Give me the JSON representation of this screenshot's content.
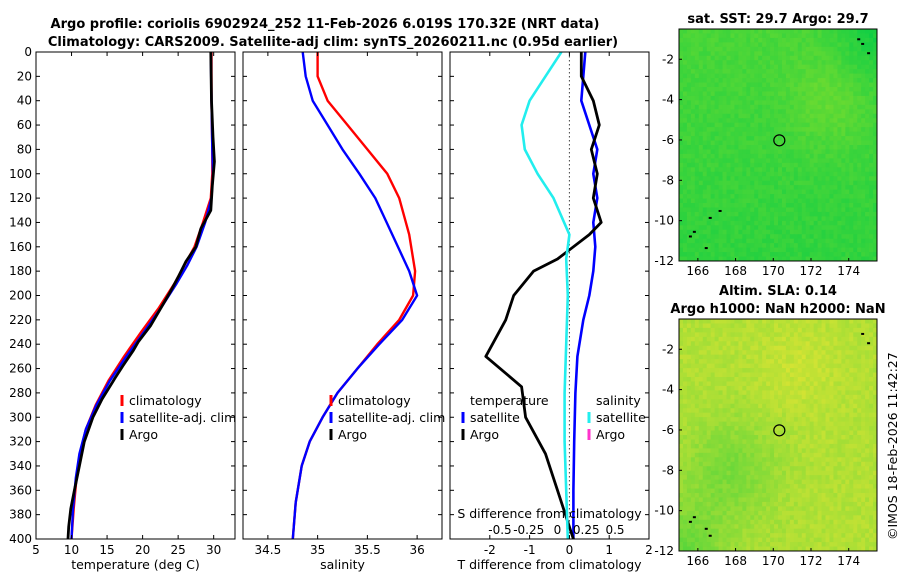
{
  "figure": {
    "title_line1": "Argo profile: coriolis 6902924_252 11-Feb-2026 6.019S 170.32E (NRT data)",
    "title_line2": "Climatology: CARS2009. Satellite-adj clim: synTS_20260211.nc (0.95d earlier)",
    "credit": "©IMOS 18-Feb-2026 11:42:27"
  },
  "colors": {
    "climatology": "#ff0000",
    "satellite": "#0000ff",
    "argo": "#000000",
    "sat_salinity": "#22eeee",
    "s_satellite_legend": "#ff33cc",
    "zero_line": "#444444",
    "map_ring": "#000000"
  },
  "chart_data": [
    {
      "id": "temperature",
      "type": "line",
      "xlabel": "temperature (deg C)",
      "ylabel": "",
      "xlim": [
        5,
        33
      ],
      "ylim": [
        400,
        0
      ],
      "xticks": [
        5,
        10,
        15,
        20,
        25,
        30
      ],
      "yticks": [
        0,
        20,
        40,
        60,
        80,
        100,
        120,
        140,
        160,
        180,
        200,
        220,
        240,
        260,
        280,
        300,
        320,
        340,
        360,
        380,
        400
      ],
      "legend": [
        "climatology",
        "satellite-adj. clim",
        "Argo"
      ],
      "series": [
        {
          "name": "climatology",
          "x": [
            29.7,
            29.7,
            29.8,
            29.8,
            29.6,
            28.5,
            27.3,
            25.9,
            24.5,
            22.3,
            19.8,
            17.4,
            15.2,
            13.4,
            12.0,
            11.2,
            10.7,
            10.3,
            10.0
          ],
          "y": [
            0,
            40,
            80,
            100,
            120,
            140,
            160,
            175,
            190,
            210,
            230,
            250,
            270,
            290,
            310,
            330,
            350,
            375,
            400
          ]
        },
        {
          "name": "satellite-adj. clim",
          "x": [
            29.6,
            29.7,
            29.8,
            29.9,
            29.7,
            28.8,
            27.6,
            26.3,
            24.8,
            22.6,
            20.2,
            17.7,
            15.4,
            13.5,
            12.0,
            11.1,
            10.6,
            10.2,
            10.0
          ],
          "y": [
            0,
            40,
            80,
            100,
            120,
            140,
            160,
            175,
            190,
            210,
            230,
            250,
            270,
            290,
            310,
            330,
            350,
            375,
            400
          ]
        },
        {
          "name": "Argo",
          "x": [
            29.6,
            29.7,
            29.9,
            30.1,
            29.8,
            29.6,
            28.2,
            27.5,
            26.1,
            25.0,
            23.8,
            22.4,
            21.1,
            19.4,
            18.7,
            17.2,
            16.1,
            14.3,
            13.0,
            11.8,
            11.1,
            10.4,
            9.9,
            9.6,
            9.5
          ],
          "y": [
            0,
            40,
            70,
            90,
            110,
            130,
            145,
            160,
            172,
            185,
            198,
            212,
            225,
            238,
            245,
            258,
            268,
            285,
            300,
            320,
            340,
            360,
            375,
            390,
            400
          ]
        }
      ]
    },
    {
      "id": "salinity",
      "type": "line",
      "xlabel": "salinity",
      "ylabel": "",
      "xlim": [
        34.25,
        36.25
      ],
      "ylim": [
        400,
        0
      ],
      "xticks": [
        34.5,
        35,
        35.5,
        36
      ],
      "xtick_labels": [
        "34.5",
        "35",
        "35.5",
        "36"
      ],
      "legend": [
        "climatology",
        "satellite-adj. clim",
        "Argo"
      ],
      "series": [
        {
          "name": "climatology",
          "x": [
            35.0,
            35.0,
            35.1,
            35.3,
            35.5,
            35.7,
            35.82,
            35.92,
            35.98,
            35.96,
            35.82,
            35.6,
            35.4,
            35.2,
            35.05,
            34.92,
            34.84,
            34.78,
            34.75
          ],
          "y": [
            0,
            20,
            40,
            60,
            80,
            100,
            120,
            150,
            180,
            200,
            220,
            240,
            260,
            280,
            300,
            320,
            340,
            370,
            400
          ]
        },
        {
          "name": "satellite-adj. clim",
          "x": [
            34.85,
            34.88,
            34.95,
            35.1,
            35.25,
            35.42,
            35.58,
            35.75,
            35.92,
            36.0,
            35.85,
            35.62,
            35.4,
            35.2,
            35.05,
            34.92,
            34.84,
            34.78,
            34.75
          ],
          "y": [
            0,
            20,
            40,
            60,
            80,
            100,
            120,
            150,
            180,
            200,
            220,
            240,
            260,
            280,
            300,
            320,
            340,
            370,
            400
          ]
        }
      ]
    },
    {
      "id": "difference",
      "type": "line",
      "xlabel": "T difference from climatology",
      "x2label": "S difference from climatology",
      "xlim": [
        -3,
        2
      ],
      "x2lim": [
        -0.75,
        0.5
      ],
      "ylim": [
        400,
        0
      ],
      "xticks": [
        -2,
        -1,
        0,
        1,
        2
      ],
      "xtick_labels": [
        "-2",
        "-1",
        "0",
        "1",
        "2"
      ],
      "x2ticks": [
        -0.5,
        -0.25,
        0,
        0.25,
        0.5
      ],
      "x2tick_labels": [
        "-0.5",
        "-0.25",
        "0",
        "0.25",
        "0.5"
      ],
      "legend_left_title": "temperature",
      "legend_right_title": "salinity",
      "legend_left": [
        "satellite",
        "Argo"
      ],
      "legend_right": [
        "satellite",
        "Argo"
      ],
      "series": [
        {
          "name": "T satellite",
          "axis": "T",
          "x": [
            0.4,
            0.35,
            0.3,
            0.5,
            0.7,
            0.6,
            0.7,
            0.6,
            0.65,
            0.6,
            0.5,
            0.35,
            0.2,
            0.15,
            0.12,
            0.1,
            0.1
          ],
          "y": [
            0,
            20,
            40,
            60,
            80,
            100,
            120,
            140,
            160,
            180,
            200,
            220,
            250,
            280,
            320,
            360,
            400
          ]
        },
        {
          "name": "T Argo",
          "axis": "T",
          "x": [
            0.3,
            0.3,
            0.6,
            0.75,
            0.55,
            0.7,
            0.6,
            0.8,
            0.5,
            0.1,
            -0.3,
            -0.9,
            -1.4,
            -1.6,
            -2.1,
            -1.2,
            -1.1,
            -0.6,
            -0.3,
            -0.05,
            0.1
          ],
          "y": [
            0,
            20,
            40,
            60,
            80,
            100,
            120,
            140,
            150,
            160,
            170,
            180,
            200,
            220,
            250,
            275,
            300,
            330,
            360,
            385,
            400
          ]
        },
        {
          "name": "S satellite",
          "axis": "S",
          "x": [
            -0.05,
            -0.15,
            -0.25,
            -0.3,
            -0.28,
            -0.2,
            -0.1,
            0.0,
            -0.02,
            -0.01,
            -0.02,
            -0.03,
            -0.03,
            -0.02,
            -0.01
          ],
          "y": [
            0,
            20,
            40,
            60,
            80,
            100,
            120,
            150,
            170,
            200,
            240,
            280,
            320,
            360,
            400
          ]
        }
      ]
    },
    {
      "id": "sst_map",
      "type": "heatmap",
      "title": "sat. SST: 29.7 Argo: 29.7",
      "xlim": [
        165,
        175.5
      ],
      "ylim": [
        -12,
        -0.5
      ],
      "xticks": [
        166,
        168,
        170,
        172,
        174
      ],
      "yticks": [
        -2,
        -4,
        -6,
        -8,
        -10,
        -12
      ],
      "argo_lon": 170.32,
      "argo_lat": -6.019
    },
    {
      "id": "sla_map",
      "type": "heatmap",
      "title_line1": "Altim. SLA: 0.14",
      "title_line2": "Argo h1000: NaN h2000: NaN",
      "xlim": [
        165,
        175.5
      ],
      "ylim": [
        -12,
        -0.5
      ],
      "xticks": [
        166,
        168,
        170,
        172,
        174
      ],
      "yticks": [
        -2,
        -4,
        -6,
        -8,
        -10,
        -12
      ],
      "argo_lon": 170.32,
      "argo_lat": -6.019
    }
  ]
}
